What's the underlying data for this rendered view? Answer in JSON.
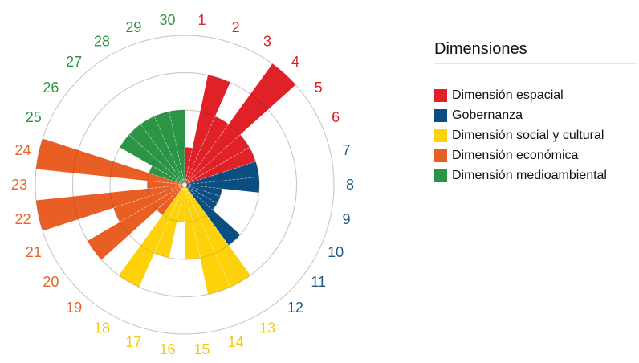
{
  "chart_data": {
    "type": "polar-bar",
    "title": "",
    "scale": {
      "min": 0,
      "max": 4,
      "rings": [
        1,
        2,
        3,
        4
      ],
      "grid": true
    },
    "categories": [
      "1",
      "2",
      "3",
      "4",
      "5",
      "6",
      "7",
      "8",
      "9",
      "10",
      "11",
      "12",
      "13",
      "14",
      "15",
      "16",
      "17",
      "18",
      "19",
      "20",
      "21",
      "22",
      "23",
      "24",
      "25",
      "26",
      "27",
      "28",
      "29",
      "30"
    ],
    "values": [
      1,
      3,
      2,
      4,
      2,
      2,
      2,
      2,
      1,
      1,
      1,
      2,
      3,
      3,
      2,
      1,
      2,
      3,
      1,
      3,
      2,
      4,
      1,
      4,
      1,
      2,
      2,
      2,
      2,
      2
    ],
    "groups": [
      {
        "name": "Dimensión espacial",
        "color": "#e02127",
        "items": [
          1,
          2,
          3,
          4,
          5,
          6
        ]
      },
      {
        "name": "Gobernanza",
        "color": "#0a4f80",
        "items": [
          7,
          8,
          9,
          10,
          11,
          12
        ]
      },
      {
        "name": "Dimensión social y cultural",
        "color": "#fdd20a",
        "items": [
          13,
          14,
          15,
          16,
          17,
          18
        ]
      },
      {
        "name": "Dimensión económica",
        "color": "#e85e24",
        "items": [
          19,
          20,
          21,
          22,
          23,
          24
        ]
      },
      {
        "name": "Dimensión medioambiental",
        "color": "#2c9545",
        "items": [
          25,
          26,
          27,
          28,
          29,
          30
        ]
      }
    ],
    "legend": {
      "title": "Dimensiones",
      "position": "right"
    }
  },
  "legend": {
    "title": "Dimensiones",
    "items": [
      {
        "label": "Dimensión espacial",
        "color": "#e02127"
      },
      {
        "label": "Gobernanza",
        "color": "#0a4f80"
      },
      {
        "label": "Dimensión social y cultural",
        "color": "#fdd20a"
      },
      {
        "label": "Dimensión económica",
        "color": "#e85e24"
      },
      {
        "label": "Dimensión medioambiental",
        "color": "#2c9545"
      }
    ]
  },
  "label_colors": {
    "1-6": "#e02127",
    "7-12": "#1d5a87",
    "13-18": "#f6c90e",
    "19-24": "#e8662c",
    "25-30": "#2c9545"
  }
}
